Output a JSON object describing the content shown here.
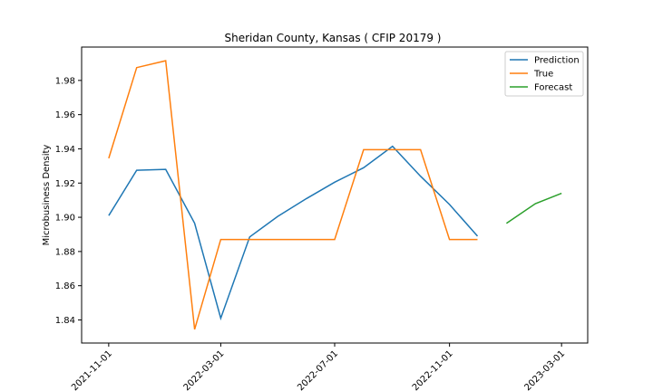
{
  "chart_data": {
    "type": "line",
    "title": "Sheridan County, Kansas ( CFIP 20179 )",
    "xlabel": "",
    "ylabel": "Microbusiness Density",
    "x_ticks": [
      "2021-11-01",
      "2022-03-01",
      "2022-07-01",
      "2022-11-01",
      "2023-03-01"
    ],
    "y_ticks": [
      1.84,
      1.86,
      1.88,
      1.9,
      1.92,
      1.94,
      1.96,
      1.98
    ],
    "ylim": [
      1.8265,
      1.9995
    ],
    "xlim": [
      "2021-10-03",
      "2023-03-29"
    ],
    "legend_position": "top-right",
    "grid": false,
    "series": [
      {
        "name": "Prediction",
        "color": "#1f77b4",
        "points": [
          [
            "2021-11-01",
            1.901
          ],
          [
            "2021-12-01",
            1.9275
          ],
          [
            "2022-01-01",
            1.928
          ],
          [
            "2022-02-01",
            1.8965
          ],
          [
            "2022-03-01",
            1.841
          ],
          [
            "2022-04-01",
            1.8885
          ],
          [
            "2022-05-01",
            1.9005
          ],
          [
            "2022-06-01",
            1.911
          ],
          [
            "2022-07-01",
            1.9205
          ],
          [
            "2022-08-01",
            1.929
          ],
          [
            "2022-09-01",
            1.9415
          ],
          [
            "2022-10-01",
            1.924
          ],
          [
            "2022-11-01",
            1.9075
          ],
          [
            "2022-12-01",
            1.889
          ]
        ]
      },
      {
        "name": "True",
        "color": "#ff7f0e",
        "points": [
          [
            "2021-11-01",
            1.9345
          ],
          [
            "2021-12-01",
            1.9875
          ],
          [
            "2022-01-01",
            1.9915
          ],
          [
            "2022-02-01",
            1.8345
          ],
          [
            "2022-03-01",
            1.887
          ],
          [
            "2022-04-01",
            1.887
          ],
          [
            "2022-05-01",
            1.887
          ],
          [
            "2022-06-01",
            1.887
          ],
          [
            "2022-07-01",
            1.887
          ],
          [
            "2022-08-01",
            1.9395
          ],
          [
            "2022-09-01",
            1.9395
          ],
          [
            "2022-10-01",
            1.9395
          ],
          [
            "2022-11-01",
            1.887
          ],
          [
            "2022-12-01",
            1.887
          ]
        ]
      },
      {
        "name": "Forecast",
        "color": "#2ca02c",
        "points": [
          [
            "2023-01-01",
            1.8965
          ],
          [
            "2023-02-01",
            1.908
          ],
          [
            "2023-03-01",
            1.914
          ]
        ]
      }
    ]
  }
}
